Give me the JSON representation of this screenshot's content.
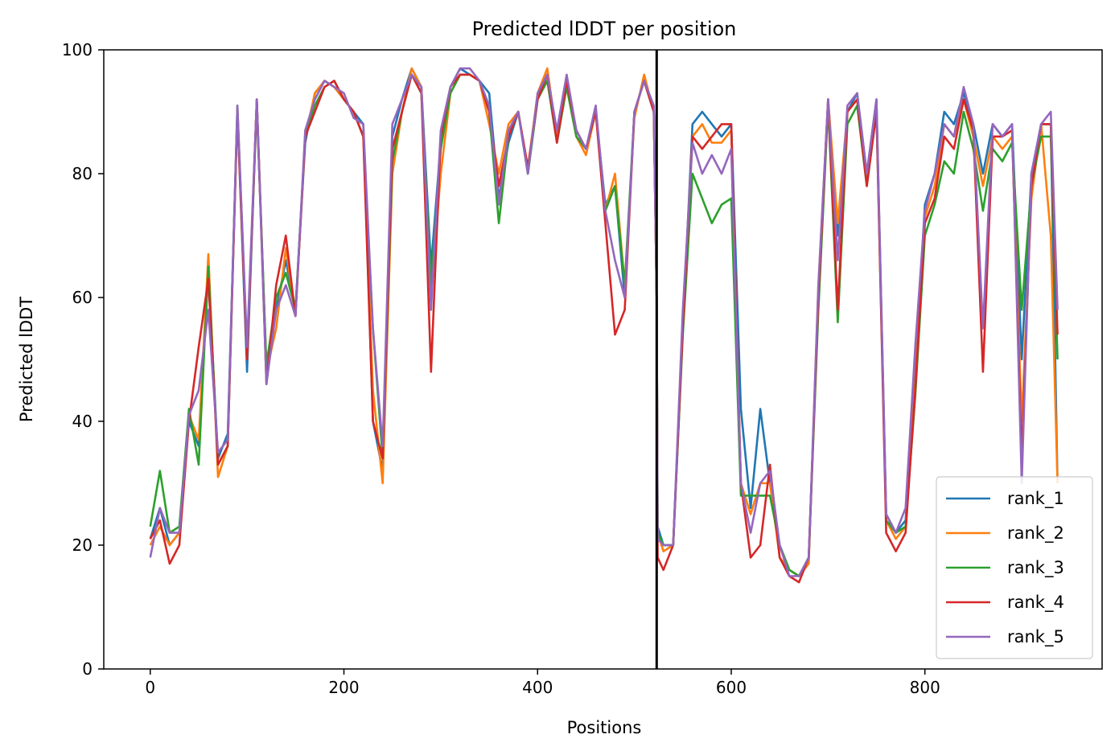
{
  "chart_data": {
    "type": "line",
    "title": "Predicted lDDT per position",
    "xlabel": "Positions",
    "ylabel": "Predicted lDDT",
    "xlim": [
      -48,
      983
    ],
    "ylim": [
      0,
      100
    ],
    "xticks": [
      0,
      200,
      400,
      600,
      800
    ],
    "yticks": [
      0,
      20,
      40,
      60,
      80,
      100
    ],
    "grid": false,
    "legend_position": "lower-right",
    "vline_x": 523,
    "vline_color": "#000000",
    "x": [
      0,
      10,
      20,
      30,
      40,
      50,
      60,
      70,
      80,
      90,
      100,
      110,
      120,
      130,
      140,
      150,
      160,
      170,
      180,
      190,
      200,
      210,
      220,
      230,
      240,
      250,
      260,
      270,
      280,
      290,
      300,
      310,
      320,
      330,
      340,
      350,
      360,
      370,
      380,
      390,
      400,
      410,
      420,
      430,
      440,
      450,
      460,
      470,
      480,
      490,
      500,
      510,
      520,
      523,
      524,
      530,
      540,
      550,
      560,
      570,
      580,
      590,
      600,
      610,
      620,
      630,
      640,
      650,
      660,
      670,
      680,
      690,
      700,
      710,
      720,
      730,
      740,
      750,
      760,
      770,
      780,
      790,
      800,
      810,
      820,
      830,
      840,
      850,
      860,
      870,
      880,
      890,
      900,
      910,
      920,
      930,
      937
    ],
    "series": [
      {
        "name": "rank_1",
        "color": "#1f77b4",
        "values": [
          21,
          26,
          20,
          22,
          40,
          36,
          64,
          34,
          38,
          90,
          48,
          92,
          48,
          58,
          66,
          58,
          85,
          93,
          95,
          94,
          92,
          90,
          88,
          40,
          32,
          86,
          92,
          97,
          94,
          65,
          85,
          94,
          97,
          96,
          95,
          93,
          76,
          85,
          90,
          80,
          92,
          96,
          86,
          95,
          87,
          84,
          90,
          75,
          78,
          60,
          90,
          95,
          90,
          60,
          23,
          20,
          20,
          55,
          88,
          90,
          88,
          86,
          88,
          42,
          26,
          42,
          30,
          20,
          16,
          15,
          18,
          60,
          92,
          70,
          90,
          93,
          80,
          92,
          25,
          22,
          24,
          48,
          75,
          80,
          90,
          88,
          93,
          88,
          80,
          88,
          86,
          88,
          50,
          80,
          88,
          88,
          30
        ]
      },
      {
        "name": "rank_2",
        "color": "#ff7f0e",
        "values": [
          20,
          23,
          20,
          22,
          41,
          37,
          67,
          31,
          36,
          90,
          50,
          92,
          48,
          55,
          68,
          57,
          86,
          93,
          95,
          94,
          92,
          90,
          86,
          45,
          30,
          80,
          90,
          97,
          94,
          60,
          80,
          93,
          96,
          96,
          95,
          88,
          80,
          88,
          90,
          81,
          93,
          97,
          86,
          94,
          86,
          83,
          90,
          74,
          80,
          62,
          89,
          96,
          90,
          60,
          22,
          19,
          20,
          56,
          86,
          88,
          85,
          85,
          87,
          30,
          25,
          30,
          30,
          18,
          16,
          15,
          17,
          62,
          92,
          72,
          90,
          92,
          79,
          91,
          24,
          21,
          23,
          46,
          73,
          78,
          88,
          86,
          92,
          86,
          78,
          86,
          84,
          86,
          40,
          76,
          88,
          70,
          30
        ]
      },
      {
        "name": "rank_3",
        "color": "#2ca02c",
        "values": [
          23,
          32,
          22,
          23,
          42,
          33,
          65,
          33,
          36,
          91,
          51,
          91,
          49,
          60,
          64,
          58,
          86,
          91,
          94,
          95,
          92,
          90,
          86,
          55,
          34,
          82,
          90,
          96,
          93,
          62,
          84,
          93,
          96,
          96,
          95,
          90,
          72,
          86,
          90,
          80,
          92,
          95,
          85,
          94,
          86,
          84,
          90,
          74,
          78,
          62,
          90,
          95,
          90,
          60,
          22,
          20,
          20,
          54,
          80,
          76,
          72,
          75,
          76,
          28,
          28,
          28,
          28,
          20,
          16,
          15,
          18,
          58,
          91,
          56,
          88,
          91,
          78,
          90,
          24,
          22,
          23,
          44,
          70,
          75,
          82,
          80,
          90,
          84,
          74,
          84,
          82,
          85,
          58,
          78,
          86,
          86,
          50
        ]
      },
      {
        "name": "rank_4",
        "color": "#d62728",
        "values": [
          21,
          24,
          17,
          20,
          40,
          52,
          63,
          33,
          36,
          90,
          50,
          92,
          46,
          62,
          70,
          57,
          86,
          90,
          94,
          95,
          92,
          90,
          86,
          40,
          34,
          84,
          90,
          96,
          93,
          48,
          86,
          94,
          96,
          96,
          95,
          90,
          78,
          86,
          90,
          81,
          92,
          96,
          85,
          95,
          87,
          84,
          90,
          72,
          54,
          58,
          90,
          95,
          90,
          60,
          18,
          16,
          20,
          55,
          86,
          84,
          86,
          88,
          88,
          30,
          18,
          20,
          33,
          18,
          15,
          14,
          18,
          60,
          92,
          58,
          90,
          92,
          78,
          90,
          22,
          19,
          22,
          45,
          72,
          76,
          86,
          84,
          92,
          87,
          48,
          86,
          86,
          87,
          34,
          78,
          88,
          88,
          54
        ]
      },
      {
        "name": "rank_5",
        "color": "#9467bd",
        "values": [
          18,
          26,
          22,
          22,
          41,
          45,
          58,
          35,
          37,
          91,
          52,
          92,
          46,
          58,
          62,
          57,
          87,
          92,
          95,
          94,
          93,
          89,
          88,
          55,
          36,
          88,
          92,
          96,
          94,
          58,
          87,
          94,
          97,
          97,
          95,
          91,
          75,
          87,
          90,
          80,
          93,
          96,
          87,
          96,
          87,
          84,
          91,
          74,
          66,
          60,
          90,
          95,
          91,
          60,
          21,
          20,
          20,
          58,
          85,
          80,
          83,
          80,
          84,
          30,
          22,
          30,
          32,
          20,
          15,
          15,
          18,
          62,
          92,
          66,
          91,
          93,
          80,
          92,
          25,
          22,
          26,
          52,
          74,
          80,
          88,
          86,
          94,
          88,
          55,
          88,
          86,
          88,
          30,
          80,
          88,
          90,
          58
        ]
      }
    ]
  }
}
